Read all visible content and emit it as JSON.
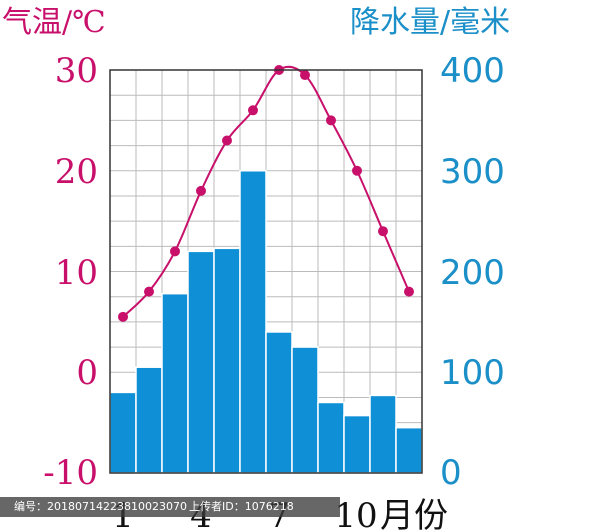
{
  "chart_data": {
    "type": "bar+line",
    "left_axis_title": "气温/℃",
    "right_axis_title": "降水量/毫米",
    "x_axis_unit": "月份",
    "months": [
      1,
      2,
      3,
      4,
      5,
      6,
      7,
      8,
      9,
      10,
      11,
      12
    ],
    "x_tick_labels": [
      "1",
      "4",
      "7",
      "10"
    ],
    "temperature": {
      "unit": "℃",
      "values": [
        5.5,
        8,
        12,
        18,
        23,
        26,
        30,
        29.5,
        25,
        20,
        14,
        8
      ],
      "ylim": [
        -10,
        30
      ],
      "ticks": [
        "30",
        "20",
        "10",
        "0",
        "-10"
      ],
      "color": "#c8106b"
    },
    "precipitation": {
      "unit": "毫米",
      "values": [
        80,
        105,
        178,
        220,
        223,
        300,
        140,
        125,
        70,
        57,
        77,
        45
      ],
      "ylim": [
        0,
        400
      ],
      "ticks": [
        "400",
        "300",
        "200",
        "100",
        "0"
      ],
      "color": "#0f8fd6"
    },
    "grid": true
  },
  "footer": {
    "id_text": "编号：20180714223810023070",
    "uploader_text": "上传者ID：1076218"
  }
}
